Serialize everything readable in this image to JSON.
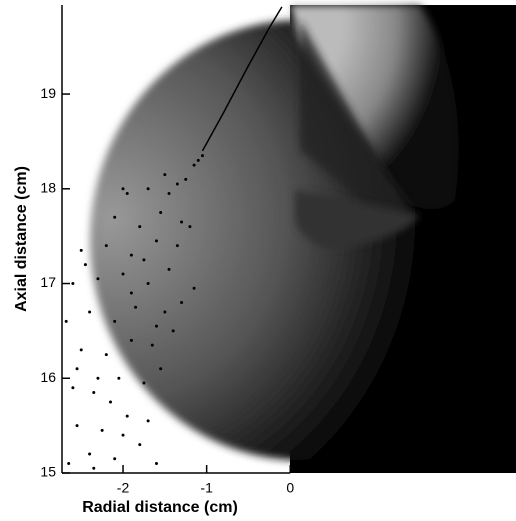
{
  "chart_data": {
    "type": "scatter",
    "x_label": "Radial distance (cm)",
    "y_label": "Axial distance (cm)",
    "xlim": [
      -2.73,
      2.7
    ],
    "ylim": [
      15,
      19.94
    ],
    "xticks": [
      -2,
      -1,
      0
    ],
    "yticks": [
      15,
      16,
      17,
      18,
      19
    ],
    "series": [
      {
        "color": "#000000",
        "mode": "points",
        "x": [
          -2.65,
          -2.4,
          -2.1,
          -1.8,
          -1.6,
          -2.55,
          -2.25,
          -1.95,
          -1.7,
          -2.6,
          -2.35,
          -2.05,
          -1.75,
          -1.55,
          -2.5,
          -2.2,
          -1.9,
          -1.65,
          -2.68,
          -2.4,
          -2.1,
          -1.85,
          -1.5,
          -1.3,
          -2.6,
          -2.3,
          -2.0,
          -1.7,
          -1.45,
          -1.15,
          -2.5,
          -2.2,
          -1.9,
          -1.6,
          -1.35,
          -2.1,
          -1.8,
          -1.55,
          -1.3,
          -1.95,
          -1.7,
          -1.45,
          -1.25,
          -1.15,
          -1.1,
          -1.5,
          -2.3,
          -2.45,
          -1.4,
          -1.2,
          -2.0,
          -1.9,
          -2.15,
          -1.6,
          -2.55,
          -1.35,
          -1.05,
          -2.35,
          -1.75,
          -2.0
        ],
        "y": [
          15.1,
          15.2,
          15.15,
          15.3,
          15.1,
          15.5,
          15.45,
          15.6,
          15.55,
          15.9,
          15.85,
          16.0,
          15.95,
          16.1,
          16.3,
          16.25,
          16.4,
          16.35,
          16.6,
          16.7,
          16.6,
          16.75,
          16.7,
          16.8,
          17.0,
          17.05,
          17.1,
          17.0,
          17.15,
          16.95,
          17.35,
          17.4,
          17.3,
          17.45,
          17.4,
          17.7,
          17.6,
          17.75,
          17.65,
          17.95,
          18.0,
          17.95,
          18.1,
          18.25,
          18.3,
          18.15,
          16.0,
          17.2,
          16.5,
          17.6,
          15.4,
          16.9,
          15.75,
          16.55,
          16.1,
          18.05,
          18.35,
          15.05,
          17.25,
          18.0
        ]
      },
      {
        "color": "#000000",
        "mode": "line",
        "x": [
          -1.05,
          -0.8,
          -0.5,
          -0.25,
          -0.1
        ],
        "y": [
          18.4,
          18.8,
          19.3,
          19.7,
          19.92
        ]
      }
    ]
  }
}
